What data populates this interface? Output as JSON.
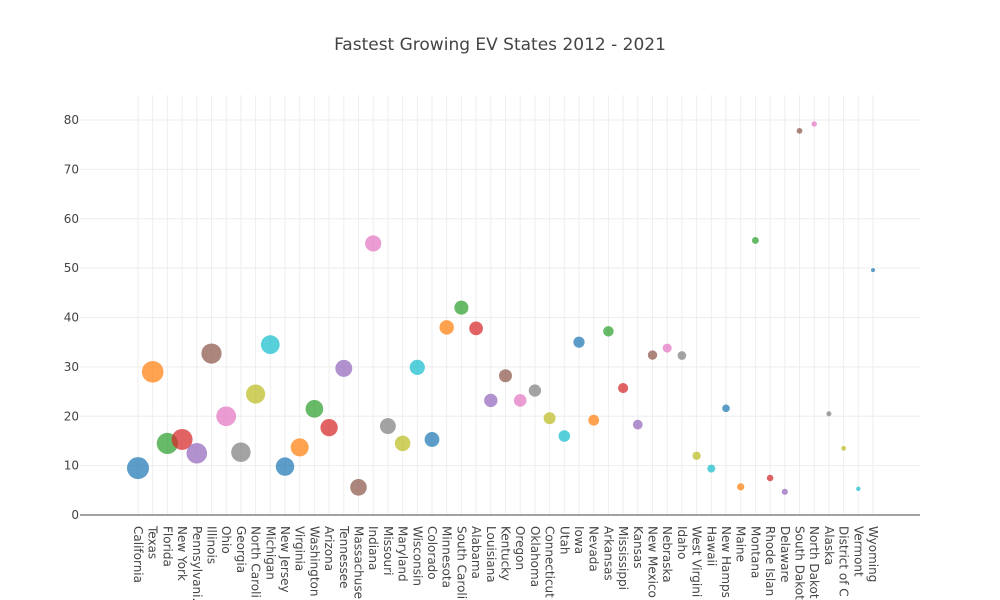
{
  "chart_data": {
    "type": "scatter",
    "title": "Fastest Growing EV States 2012 - 2021",
    "xlabel": "",
    "ylabel": "",
    "ylim": [
      0,
      84
    ],
    "yticks": [
      0,
      10,
      20,
      30,
      40,
      50,
      60,
      70,
      80
    ],
    "grid": true,
    "legend": "none",
    "categories": [
      "California",
      "Texas",
      "Florida",
      "New York",
      "Pennsylvani.",
      "Illinois",
      "Ohio",
      "Georgia",
      "North Caroli",
      "Michigan",
      "New Jersey",
      "Virginia",
      "Washington",
      "Arizona",
      "Tennessee",
      "Massachuse",
      "Indiana",
      "Missouri",
      "Maryland",
      "Wisconsin",
      "Colorado",
      "Minnesota",
      "South Caroli",
      "Alabama",
      "Louisiana",
      "Kentucky",
      "Oregon",
      "Oklahoma",
      "Connecticut",
      "Utah",
      "Iowa",
      "Nevada",
      "Arkansas",
      "Mississippi",
      "Kansas",
      "New Mexico",
      "Nebraska",
      "Idaho",
      "West Virgini",
      "Hawaii",
      "New Hamps",
      "Maine",
      "Montana",
      "Rhode Islan",
      "Delaware",
      "South Dakot",
      "North Dakot",
      "Alaska",
      "District of C",
      "Vermont",
      "Wyoming"
    ],
    "values": [
      9.5,
      29,
      14.5,
      15.3,
      12.5,
      32.7,
      20,
      12.7,
      24.5,
      34.5,
      9.8,
      13.7,
      21.5,
      17.7,
      29.7,
      5.6,
      55,
      18,
      14.5,
      29.9,
      15.3,
      38,
      42,
      37.8,
      23.2,
      28.2,
      23.2,
      25.2,
      19.6,
      16,
      35,
      19.2,
      37.2,
      25.7,
      18.3,
      32.4,
      33.8,
      32.3,
      12,
      9.4,
      21.6,
      5.7,
      55.6,
      7.5,
      4.7,
      77.8,
      79.2,
      20.5,
      13.5,
      5.3,
      49.6
    ],
    "colors": [
      "#1f77b4",
      "#ff7f0e",
      "#2ca02c",
      "#d62728",
      "#9467bd",
      "#8c564b",
      "#e377c2",
      "#7f7f7f",
      "#bcbd22",
      "#17becf"
    ]
  }
}
